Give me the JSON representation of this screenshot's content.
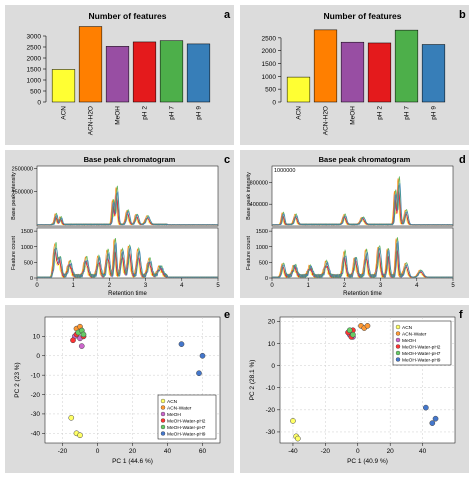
{
  "panel_letters": [
    "a",
    "b",
    "c",
    "d",
    "e",
    "f"
  ],
  "chart_data": [
    {
      "panel": "a",
      "type": "bar",
      "title": "Number of features",
      "categories": [
        "ACN",
        "ACN-H2O",
        "MeOH",
        "pH 2",
        "pH 7",
        "pH 9"
      ],
      "values": [
        1480,
        3430,
        2530,
        2730,
        2790,
        2640
      ],
      "colors": [
        "#ffff33",
        "#ff7f00",
        "#984ea3",
        "#e41a1c",
        "#4daf4a",
        "#377eb8"
      ],
      "ylim": [
        0,
        3500
      ],
      "yticks": [
        0,
        500,
        1000,
        1500,
        2000,
        2500,
        3000
      ]
    },
    {
      "panel": "b",
      "type": "bar",
      "title": "Number of features",
      "categories": [
        "ACN",
        "ACN-H2O",
        "MeOH",
        "pH 2",
        "pH 7",
        "pH 9"
      ],
      "values": [
        970,
        2810,
        2330,
        2300,
        2800,
        2240
      ],
      "colors": [
        "#ffff33",
        "#ff7f00",
        "#984ea3",
        "#e41a1c",
        "#4daf4a",
        "#377eb8"
      ],
      "ylim": [
        0,
        3000
      ],
      "yticks": [
        0,
        500,
        1000,
        1500,
        2000,
        2500
      ]
    },
    {
      "panel": "c",
      "type": "line",
      "title": "Base peak chromatogram",
      "xlabel": "Retention time",
      "xlim": [
        0,
        5
      ],
      "xticks": [
        0,
        1,
        2,
        3,
        4,
        5
      ],
      "top": {
        "ylabel": "Base peak intensity",
        "ylim": [
          0,
          2600000
        ],
        "yticks": [
          1500000,
          2500000
        ],
        "ytick_labels": [
          "1500000",
          "2500000"
        ],
        "peaks": [
          {
            "x": 0.52,
            "h": 500000,
            "w": 0.03
          },
          {
            "x": 0.65,
            "h": 350000,
            "w": 0.03
          },
          {
            "x": 2.1,
            "h": 1200000,
            "w": 0.025
          },
          {
            "x": 2.2,
            "h": 1800000,
            "w": 0.03
          },
          {
            "x": 2.5,
            "h": 700000,
            "w": 0.04
          },
          {
            "x": 2.75,
            "h": 500000,
            "w": 0.04
          },
          {
            "x": 3.05,
            "h": 400000,
            "w": 0.05
          }
        ]
      },
      "bottom": {
        "ylabel": "Feature count",
        "ylim": [
          0,
          1600
        ],
        "yticks": [
          0,
          500,
          1000,
          1500
        ],
        "ytick_labels": [
          "0",
          "500",
          "1000",
          "1500"
        ],
        "peaks": [
          {
            "x": 0.5,
            "h": 1150,
            "w": 0.04
          },
          {
            "x": 0.62,
            "h": 700,
            "w": 0.04
          },
          {
            "x": 0.9,
            "h": 500,
            "w": 0.05
          },
          {
            "x": 1.35,
            "h": 650,
            "w": 0.05
          },
          {
            "x": 1.7,
            "h": 700,
            "w": 0.04
          },
          {
            "x": 1.95,
            "h": 900,
            "w": 0.04
          },
          {
            "x": 2.15,
            "h": 1300,
            "w": 0.03
          },
          {
            "x": 2.35,
            "h": 950,
            "w": 0.04
          },
          {
            "x": 2.55,
            "h": 1100,
            "w": 0.04
          },
          {
            "x": 2.8,
            "h": 950,
            "w": 0.04
          },
          {
            "x": 3.1,
            "h": 600,
            "w": 0.05
          },
          {
            "x": 3.4,
            "h": 350,
            "w": 0.06
          }
        ]
      },
      "series_colors": [
        "#ffff33",
        "#ff7f00",
        "#984ea3",
        "#e41a1c",
        "#4daf4a",
        "#377eb8"
      ]
    },
    {
      "panel": "d",
      "type": "line",
      "title": "Base peak chromatogram",
      "xlabel": "Retention time",
      "xlim": [
        0,
        5
      ],
      "xticks": [
        0,
        1,
        2,
        3,
        4,
        5
      ],
      "top": {
        "ylabel": "Base peak intensity",
        "ylim": [
          0,
          1100000
        ],
        "yticks": [
          400000,
          800000
        ],
        "ytick_labels": [
          "400000",
          "800000"
        ],
        "extra_tick_label": "1000000",
        "peaks": [
          {
            "x": 0.3,
            "h": 250000,
            "w": 0.03
          },
          {
            "x": 0.65,
            "h": 200000,
            "w": 0.04
          },
          {
            "x": 2.0,
            "h": 200000,
            "w": 0.04
          },
          {
            "x": 2.5,
            "h": 150000,
            "w": 0.05
          },
          {
            "x": 3.4,
            "h": 700000,
            "w": 0.025
          },
          {
            "x": 3.5,
            "h": 950000,
            "w": 0.03
          },
          {
            "x": 3.7,
            "h": 300000,
            "w": 0.04
          }
        ]
      },
      "bottom": {
        "ylabel": "Feature count",
        "ylim": [
          0,
          1600
        ],
        "yticks": [
          0,
          500,
          1000,
          1500
        ],
        "ytick_labels": [
          "0",
          "500",
          "1000",
          "1500"
        ],
        "peaks": [
          {
            "x": 0.3,
            "h": 500,
            "w": 0.04
          },
          {
            "x": 0.62,
            "h": 400,
            "w": 0.05
          },
          {
            "x": 1.05,
            "h": 350,
            "w": 0.05
          },
          {
            "x": 1.5,
            "h": 500,
            "w": 0.05
          },
          {
            "x": 2.0,
            "h": 850,
            "w": 0.04
          },
          {
            "x": 2.3,
            "h": 700,
            "w": 0.04
          },
          {
            "x": 2.6,
            "h": 900,
            "w": 0.04
          },
          {
            "x": 2.95,
            "h": 1100,
            "w": 0.04
          },
          {
            "x": 3.2,
            "h": 1000,
            "w": 0.03
          },
          {
            "x": 3.45,
            "h": 1350,
            "w": 0.03
          },
          {
            "x": 3.7,
            "h": 500,
            "w": 0.05
          },
          {
            "x": 4.1,
            "h": 250,
            "w": 0.06
          }
        ]
      },
      "series_colors": [
        "#ffff33",
        "#ff7f00",
        "#984ea3",
        "#e41a1c",
        "#4daf4a",
        "#377eb8"
      ]
    },
    {
      "panel": "e",
      "type": "scatter",
      "xlabel": "PC 1 (44.6 %)",
      "ylabel": "PC 2 (23 %)",
      "xlim": [
        -30,
        70
      ],
      "ylim": [
        -45,
        20
      ],
      "xticks": [
        -20,
        0,
        20,
        40,
        60
      ],
      "yticks": [
        -40,
        -30,
        -20,
        -10,
        0,
        10
      ],
      "legend": {
        "position": "bottom-right",
        "entries": [
          "ACN",
          "ACN-Water",
          "MeOH",
          "MeOH-Water-pH2",
          "MeOH-Water-pH7",
          "MeOH-Water-pH9"
        ]
      },
      "series": [
        {
          "name": "ACN",
          "color": "#ffff66",
          "x": [
            -15,
            -12,
            -10
          ],
          "y": [
            -32,
            -40,
            -41
          ]
        },
        {
          "name": "ACN-Water",
          "color": "#ff9933",
          "x": [
            -12,
            -10,
            -9
          ],
          "y": [
            14,
            15,
            13
          ]
        },
        {
          "name": "MeOH",
          "color": "#cc66cc",
          "x": [
            -13,
            -10,
            -9
          ],
          "y": [
            10,
            9,
            5
          ]
        },
        {
          "name": "MeOH-Water-pH2",
          "color": "#ff3333",
          "x": [
            -14,
            -12,
            -8
          ],
          "y": [
            8,
            11,
            10
          ]
        },
        {
          "name": "MeOH-Water-pH7",
          "color": "#66cc66",
          "x": [
            -11,
            -9,
            -8
          ],
          "y": [
            12,
            13,
            11
          ]
        },
        {
          "name": "MeOH-Water-pH9",
          "color": "#4477cc",
          "x": [
            48,
            58,
            60
          ],
          "y": [
            6,
            -9,
            0
          ]
        }
      ]
    },
    {
      "panel": "f",
      "type": "scatter",
      "xlabel": "PC 1 (40.9 %)",
      "ylabel": "PC 2 (28.1 %)",
      "xlim": [
        -48,
        60
      ],
      "ylim": [
        -35,
        22
      ],
      "xticks": [
        -40,
        -20,
        0,
        20,
        40
      ],
      "yticks": [
        -30,
        -20,
        -10,
        0,
        10,
        20
      ],
      "legend": {
        "position": "top-right",
        "entries": [
          "ACN",
          "ACN-Water",
          "MeOH",
          "MeOH-Water-pH2",
          "MeOH-Water-pH7",
          "MeOH-Water-pH9"
        ]
      },
      "series": [
        {
          "name": "ACN",
          "color": "#ffff66",
          "x": [
            -40,
            -38,
            -37
          ],
          "y": [
            -25,
            -32,
            -33
          ]
        },
        {
          "name": "ACN-Water",
          "color": "#ff9933",
          "x": [
            2,
            4,
            6
          ],
          "y": [
            18,
            17,
            18
          ]
        },
        {
          "name": "MeOH",
          "color": "#cc66cc",
          "x": [
            -5,
            -4,
            -3
          ],
          "y": [
            14,
            15,
            13
          ]
        },
        {
          "name": "MeOH-Water-pH2",
          "color": "#ff3333",
          "x": [
            -6,
            -4,
            -3
          ],
          "y": [
            15,
            13,
            16
          ]
        },
        {
          "name": "MeOH-Water-pH7",
          "color": "#66cc66",
          "x": [
            -5,
            -3
          ],
          "y": [
            16,
            14
          ]
        },
        {
          "name": "MeOH-Water-pH9",
          "color": "#4477cc",
          "x": [
            42,
            46,
            48
          ],
          "y": [
            -19,
            -26,
            -24
          ]
        }
      ]
    }
  ]
}
